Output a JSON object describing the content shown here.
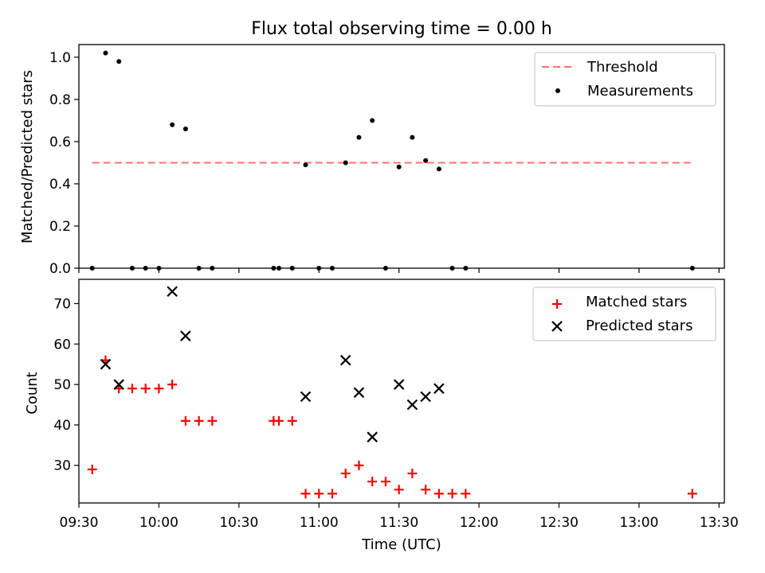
{
  "chart_data": [
    {
      "type": "scatter",
      "title": "Flux total observing time = 0.00 h",
      "xlabel": "",
      "ylabel": "Matched/Predicted stars",
      "ylim": [
        0,
        1.06
      ],
      "yticks": [
        0.0,
        0.2,
        0.4,
        0.6,
        0.8,
        1.0
      ],
      "ytick_labels": [
        "0.0",
        "0.2",
        "0.4",
        "0.6",
        "0.8",
        "1.0"
      ],
      "grid": false,
      "legend_position": "top-right",
      "threshold": {
        "name": "Threshold",
        "value": 0.5,
        "x_start": "09:35",
        "x_end": "13:20",
        "color": "#ff7070",
        "style": "dashed"
      },
      "series": [
        {
          "name": "Measurements",
          "color": "#000000",
          "marker": "dot",
          "x": [
            "09:35",
            "09:40",
            "09:45",
            "09:50",
            "09:55",
            "10:00",
            "10:05",
            "10:10",
            "10:15",
            "10:20",
            "10:43",
            "10:45",
            "10:50",
            "10:55",
            "11:00",
            "11:05",
            "11:10",
            "11:15",
            "11:20",
            "11:25",
            "11:30",
            "11:35",
            "11:40",
            "11:45",
            "11:50",
            "11:55",
            "13:20"
          ],
          "y": [
            0.0,
            1.02,
            0.98,
            0.0,
            0.0,
            0.0,
            0.68,
            0.66,
            0.0,
            0.0,
            0.0,
            0.0,
            0.0,
            0.49,
            0.0,
            0.0,
            0.5,
            0.62,
            0.7,
            0.0,
            0.48,
            0.62,
            0.51,
            0.47,
            0.0,
            0.0,
            0.0
          ]
        }
      ]
    },
    {
      "type": "scatter",
      "title": "",
      "xlabel": "Time (UTC)",
      "ylabel": "Count",
      "ylim": [
        20.7,
        76
      ],
      "yticks": [
        30,
        40,
        50,
        60,
        70
      ],
      "ytick_labels": [
        "30",
        "40",
        "50",
        "60",
        "70"
      ],
      "xlim": [
        "09:30",
        "13:32"
      ],
      "xticks": [
        "09:30",
        "10:00",
        "10:30",
        "11:00",
        "11:30",
        "12:00",
        "12:30",
        "13:00",
        "13:30"
      ],
      "xtick_labels": [
        "09:30",
        "10:00",
        "10:30",
        "11:00",
        "11:30",
        "12:00",
        "12:30",
        "13:00",
        "13:30"
      ],
      "grid": false,
      "legend_position": "top-right",
      "series": [
        {
          "name": "Matched stars",
          "color": "#ff0000",
          "marker": "plus",
          "x": [
            "09:35",
            "09:40",
            "09:45",
            "09:50",
            "09:55",
            "10:00",
            "10:05",
            "10:10",
            "10:15",
            "10:20",
            "10:43",
            "10:45",
            "10:50",
            "10:55",
            "11:00",
            "11:05",
            "11:10",
            "11:15",
            "11:20",
            "11:25",
            "11:30",
            "11:35",
            "11:40",
            "11:45",
            "11:50",
            "11:55",
            "13:20"
          ],
          "y": [
            29,
            56,
            49,
            49,
            49,
            49,
            50,
            41,
            41,
            41,
            41,
            41,
            41,
            23,
            23,
            23,
            28,
            30,
            26,
            26,
            24,
            28,
            24,
            23,
            23,
            23,
            23
          ]
        },
        {
          "name": "Predicted stars",
          "color": "#000000",
          "marker": "x",
          "x": [
            "09:40",
            "09:45",
            "10:05",
            "10:10",
            "10:55",
            "11:10",
            "11:15",
            "11:20",
            "11:30",
            "11:35",
            "11:40",
            "11:45"
          ],
          "y": [
            55,
            50,
            73,
            62,
            47,
            56,
            48,
            37,
            50,
            45,
            47,
            49
          ]
        }
      ]
    }
  ]
}
